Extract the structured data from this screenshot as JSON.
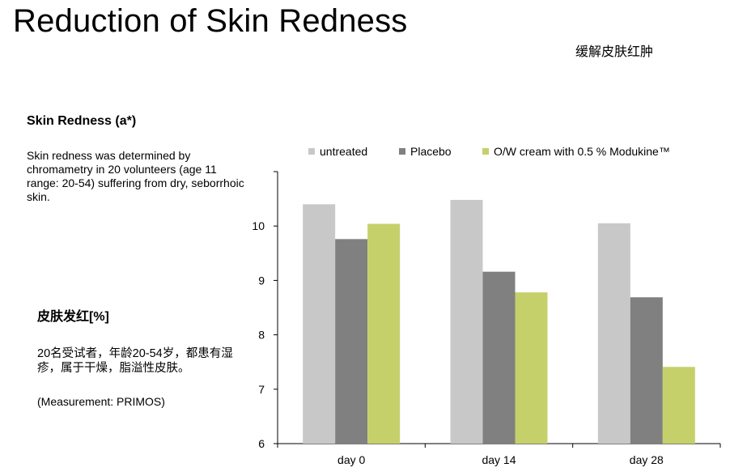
{
  "slide": {
    "title": "Reduction of Skin Redness",
    "subtitle_cn": "缓解皮肤红肿",
    "section_heading": "Skin Redness (a*)",
    "description": "Skin redness was determined by chromametry in 20 volunteers (age 11 range: 20-54) suffering from dry, seborrhoic skin.",
    "cn_heading": "皮肤发红[%]",
    "cn_description": "20名受试者，年龄20-54岁，都患有湿疹，属于干燥，脂溢性皮肤。",
    "measurement": "(Measurement: PRIMOS)"
  },
  "chart_data": {
    "type": "bar",
    "categories": [
      "day 0",
      "day 14",
      "day 28"
    ],
    "series": [
      {
        "name": "untreated",
        "values": [
          10.4,
          10.48,
          10.05
        ],
        "color": "#c8c8c8"
      },
      {
        "name": "Placebo",
        "values": [
          9.76,
          9.16,
          8.69
        ],
        "color": "#808080"
      },
      {
        "name": "O/W cream with 0.5 % Modukine™",
        "values": [
          10.04,
          8.78,
          7.41
        ],
        "color": "#c6d06a"
      }
    ],
    "ylim": [
      6,
      11
    ],
    "yticks": [
      6,
      7,
      8,
      9,
      10
    ],
    "xlabel": "",
    "ylabel": "",
    "grid": false,
    "legend_position": "top"
  }
}
